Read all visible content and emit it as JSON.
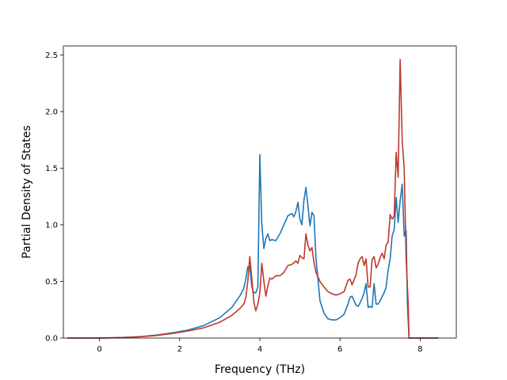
{
  "chart_data": {
    "type": "line",
    "title": "",
    "xlabel": "Frequency (THz)",
    "ylabel": "Partial Density of States",
    "xlim": [
      -0.9,
      8.9
    ],
    "ylim": [
      0,
      2.58
    ],
    "xticks": [
      0,
      2,
      4,
      6,
      8
    ],
    "xtick_labels": [
      "0",
      "2",
      "4",
      "6",
      "8"
    ],
    "yticks": [
      0.0,
      0.5,
      1.0,
      1.5,
      2.0,
      2.5
    ],
    "ytick_labels": [
      "0.0",
      "0.5",
      "1.0",
      "1.5",
      "2.0",
      "2.5"
    ],
    "grid": false,
    "legend": "none",
    "series": [
      {
        "color": "#1f77b4",
        "points": [
          [
            -0.8,
            0
          ],
          [
            0,
            0
          ],
          [
            0.3,
            0.002
          ],
          [
            0.6,
            0.005
          ],
          [
            1.0,
            0.012
          ],
          [
            1.4,
            0.025
          ],
          [
            1.8,
            0.045
          ],
          [
            2.2,
            0.07
          ],
          [
            2.6,
            0.11
          ],
          [
            3.0,
            0.18
          ],
          [
            3.3,
            0.27
          ],
          [
            3.5,
            0.37
          ],
          [
            3.6,
            0.44
          ],
          [
            3.65,
            0.52
          ],
          [
            3.7,
            0.63
          ],
          [
            3.75,
            0.63
          ],
          [
            3.8,
            0.45
          ],
          [
            3.85,
            0.4
          ],
          [
            3.9,
            0.4
          ],
          [
            3.95,
            0.45
          ],
          [
            4.0,
            1.62
          ],
          [
            4.05,
            1.0
          ],
          [
            4.1,
            0.79
          ],
          [
            4.15,
            0.88
          ],
          [
            4.2,
            0.92
          ],
          [
            4.25,
            0.86
          ],
          [
            4.3,
            0.87
          ],
          [
            4.4,
            0.86
          ],
          [
            4.5,
            0.92
          ],
          [
            4.6,
            1.0
          ],
          [
            4.7,
            1.08
          ],
          [
            4.8,
            1.1
          ],
          [
            4.85,
            1.07
          ],
          [
            4.9,
            1.12
          ],
          [
            4.95,
            1.2
          ],
          [
            5.0,
            1.05
          ],
          [
            5.05,
            1.0
          ],
          [
            5.1,
            1.22
          ],
          [
            5.15,
            1.33
          ],
          [
            5.2,
            1.17
          ],
          [
            5.25,
            0.99
          ],
          [
            5.3,
            1.11
          ],
          [
            5.35,
            1.08
          ],
          [
            5.4,
            0.7
          ],
          [
            5.45,
            0.52
          ],
          [
            5.5,
            0.33
          ],
          [
            5.6,
            0.22
          ],
          [
            5.7,
            0.17
          ],
          [
            5.8,
            0.16
          ],
          [
            5.9,
            0.16
          ],
          [
            6.0,
            0.18
          ],
          [
            6.1,
            0.21
          ],
          [
            6.2,
            0.3
          ],
          [
            6.25,
            0.36
          ],
          [
            6.3,
            0.37
          ],
          [
            6.35,
            0.33
          ],
          [
            6.4,
            0.29
          ],
          [
            6.45,
            0.28
          ],
          [
            6.5,
            0.31
          ],
          [
            6.55,
            0.35
          ],
          [
            6.6,
            0.4
          ],
          [
            6.65,
            0.48
          ],
          [
            6.7,
            0.27
          ],
          [
            6.75,
            0.28
          ],
          [
            6.8,
            0.27
          ],
          [
            6.85,
            0.48
          ],
          [
            6.9,
            0.3
          ],
          [
            6.95,
            0.3
          ],
          [
            7.0,
            0.33
          ],
          [
            7.1,
            0.4
          ],
          [
            7.15,
            0.45
          ],
          [
            7.2,
            0.6
          ],
          [
            7.25,
            0.7
          ],
          [
            7.3,
            0.9
          ],
          [
            7.35,
            0.96
          ],
          [
            7.4,
            1.24
          ],
          [
            7.45,
            1.02
          ],
          [
            7.5,
            1.21
          ],
          [
            7.55,
            1.36
          ],
          [
            7.6,
            0.9
          ],
          [
            7.65,
            0.95
          ],
          [
            7.68,
            0.3
          ],
          [
            7.72,
            0.0
          ],
          [
            8.45,
            0.0
          ]
        ]
      },
      {
        "color": "#c0392b",
        "points": [
          [
            -0.8,
            0
          ],
          [
            0,
            0
          ],
          [
            0.3,
            0.002
          ],
          [
            0.6,
            0.005
          ],
          [
            1.0,
            0.012
          ],
          [
            1.4,
            0.022
          ],
          [
            1.8,
            0.04
          ],
          [
            2.2,
            0.062
          ],
          [
            2.6,
            0.09
          ],
          [
            3.0,
            0.14
          ],
          [
            3.3,
            0.2
          ],
          [
            3.5,
            0.26
          ],
          [
            3.6,
            0.3
          ],
          [
            3.65,
            0.36
          ],
          [
            3.7,
            0.5
          ],
          [
            3.75,
            0.72
          ],
          [
            3.8,
            0.52
          ],
          [
            3.85,
            0.32
          ],
          [
            3.9,
            0.24
          ],
          [
            3.95,
            0.3
          ],
          [
            4.0,
            0.4
          ],
          [
            4.05,
            0.66
          ],
          [
            4.1,
            0.5
          ],
          [
            4.15,
            0.37
          ],
          [
            4.2,
            0.46
          ],
          [
            4.25,
            0.53
          ],
          [
            4.3,
            0.52
          ],
          [
            4.4,
            0.55
          ],
          [
            4.5,
            0.55
          ],
          [
            4.6,
            0.58
          ],
          [
            4.7,
            0.64
          ],
          [
            4.8,
            0.65
          ],
          [
            4.9,
            0.68
          ],
          [
            4.95,
            0.66
          ],
          [
            5.0,
            0.73
          ],
          [
            5.05,
            0.71
          ],
          [
            5.1,
            0.7
          ],
          [
            5.15,
            0.92
          ],
          [
            5.2,
            0.82
          ],
          [
            5.25,
            0.77
          ],
          [
            5.3,
            0.8
          ],
          [
            5.35,
            0.67
          ],
          [
            5.4,
            0.58
          ],
          [
            5.5,
            0.5
          ],
          [
            5.6,
            0.45
          ],
          [
            5.7,
            0.41
          ],
          [
            5.8,
            0.39
          ],
          [
            5.9,
            0.38
          ],
          [
            6.0,
            0.39
          ],
          [
            6.1,
            0.41
          ],
          [
            6.15,
            0.46
          ],
          [
            6.2,
            0.51
          ],
          [
            6.25,
            0.52
          ],
          [
            6.3,
            0.47
          ],
          [
            6.4,
            0.56
          ],
          [
            6.45,
            0.66
          ],
          [
            6.5,
            0.7
          ],
          [
            6.55,
            0.72
          ],
          [
            6.6,
            0.64
          ],
          [
            6.65,
            0.7
          ],
          [
            6.7,
            0.45
          ],
          [
            6.75,
            0.45
          ],
          [
            6.8,
            0.69
          ],
          [
            6.85,
            0.72
          ],
          [
            6.9,
            0.62
          ],
          [
            6.95,
            0.65
          ],
          [
            7.0,
            0.71
          ],
          [
            7.05,
            0.75
          ],
          [
            7.1,
            0.7
          ],
          [
            7.15,
            0.82
          ],
          [
            7.2,
            0.85
          ],
          [
            7.25,
            1.09
          ],
          [
            7.3,
            1.05
          ],
          [
            7.35,
            1.08
          ],
          [
            7.4,
            1.64
          ],
          [
            7.45,
            1.42
          ],
          [
            7.5,
            2.46
          ],
          [
            7.55,
            1.75
          ],
          [
            7.6,
            1.5
          ],
          [
            7.65,
            0.7
          ],
          [
            7.7,
            0.3
          ],
          [
            7.72,
            0.0
          ],
          [
            8.45,
            0.0
          ]
        ]
      }
    ]
  }
}
